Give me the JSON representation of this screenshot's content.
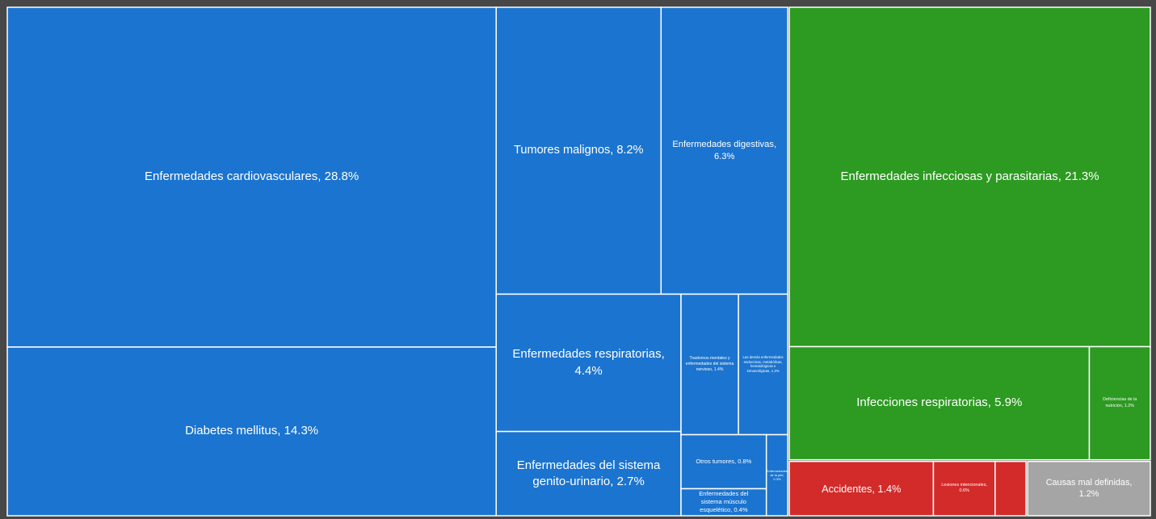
{
  "chart_data": {
    "type": "treemap",
    "groups": [
      {
        "color": "#1b74cf",
        "labels": [
          "Enfermedades cardiovasculares, 28.8%",
          "Diabetes mellitus, 14.3%",
          "Tumores malignos, 8.2%",
          "Enfermedades digestivas, 6.3%",
          "Enfermedades respiratorias, 4.4%",
          "Enfermedades del sistema genito-urinario, 2.7%",
          "Trastornos mentales y enfermedades del sistema nervioso, 1.4%",
          "Las demás enfermedades endocrinas, metabólicas, hematológicas e inmunológicas, 1.2%",
          "Otros tumores, 0.8%",
          "Enfermedades del sistema músculo esquelético, 0.4%",
          "Enfermedades de la piel, 0.3%"
        ],
        "values": [
          28.8,
          14.3,
          8.2,
          6.3,
          4.4,
          2.7,
          1.4,
          1.2,
          0.8,
          0.4,
          0.3
        ]
      },
      {
        "color": "#2d9a22",
        "labels": [
          "Enfermedades infecciosas y parasitarias, 21.3%",
          "Infecciones respiratorias, 5.9%",
          "Deficiencias de la nutrición, 1.2%"
        ],
        "values": [
          21.3,
          5.9,
          1.2
        ]
      },
      {
        "color": "#d32a2a",
        "labels": [
          "Accidentes, 1.4%",
          "Lesiones intencionales, 0.6%",
          null
        ],
        "values": [
          1.4,
          0.6,
          0.3
        ]
      },
      {
        "color": "#a5a5a5",
        "labels": [
          "Causas mal definidas, 1.2%"
        ],
        "values": [
          1.2
        ]
      }
    ]
  }
}
